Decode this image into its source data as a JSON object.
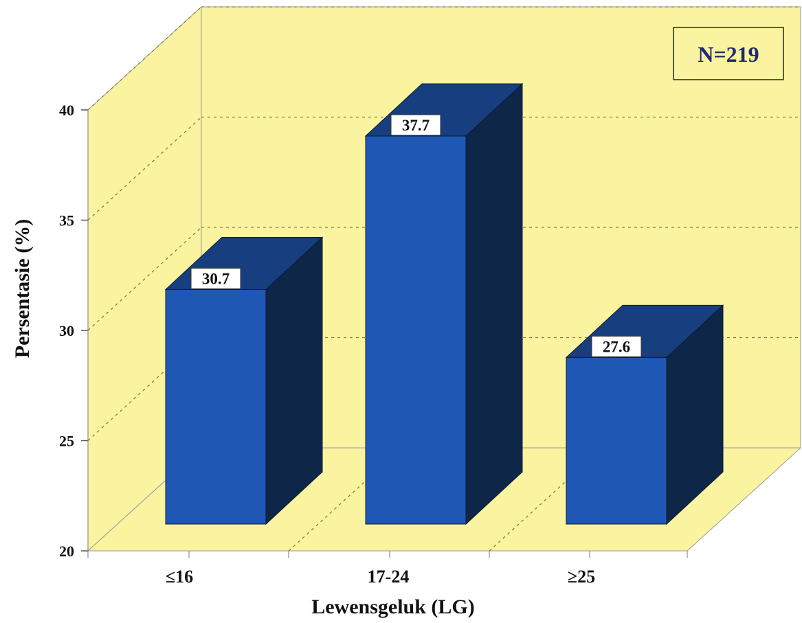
{
  "chart_data": {
    "type": "bar",
    "categories": [
      "≤16",
      "17-24",
      "≥25"
    ],
    "values": [
      30.7,
      37.7,
      27.6
    ],
    "data_labels": [
      "30.7",
      "37.7",
      "27.6"
    ],
    "xlabel": "Lewensgeluk (LG)",
    "ylabel": "Persentasie (%)",
    "ylim": [
      20,
      40
    ],
    "yticks": [
      "20",
      "25",
      "30",
      "35",
      "40"
    ],
    "grid": true,
    "annotation": "N=219",
    "colors": {
      "wall": "#faf3a0",
      "bar_front": "#1f58b4",
      "bar_top": "#173f7f",
      "bar_side": "#0e2748",
      "grid_line": "#8a7a3a"
    }
  }
}
